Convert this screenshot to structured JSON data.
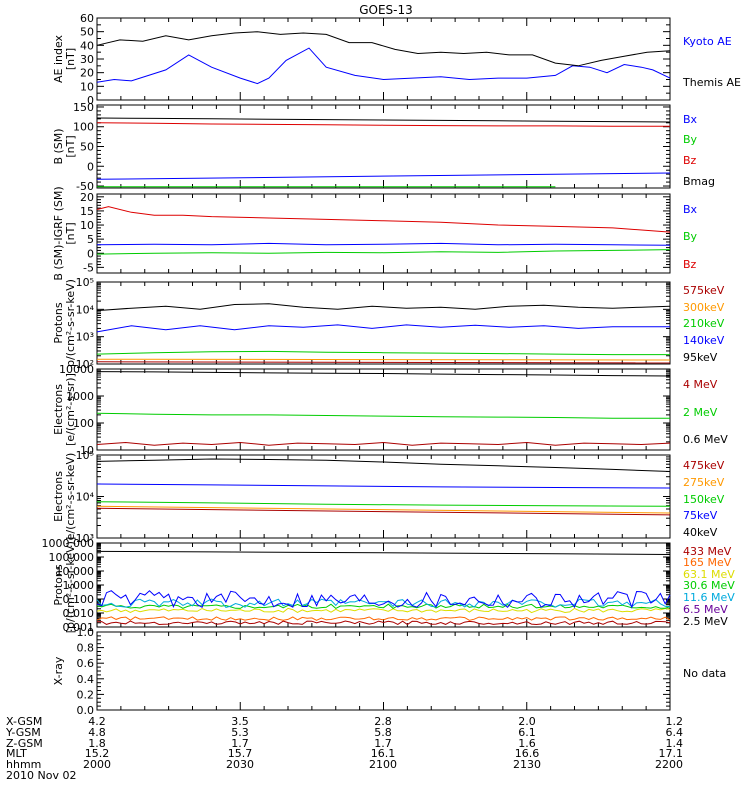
{
  "title": "GOES-13",
  "footer": {
    "rows": [
      {
        "label": "X-GSM",
        "values": [
          "4.2",
          "3.5",
          "2.8",
          "2.0",
          "1.2"
        ]
      },
      {
        "label": "Y-GSM",
        "values": [
          "4.8",
          "5.3",
          "5.8",
          "6.1",
          "6.4"
        ]
      },
      {
        "label": "Z-GSM",
        "values": [
          "1.8",
          "1.7",
          "1.7",
          "1.6",
          "1.4"
        ]
      },
      {
        "label": "MLT",
        "values": [
          "15.2",
          "15.7",
          "16.1",
          "16.6",
          "17.1"
        ]
      },
      {
        "label": "hhmm",
        "values": [
          "2000",
          "2030",
          "2100",
          "2130",
          "2200"
        ]
      }
    ],
    "date": "2010 Nov 02"
  },
  "chart_data": [
    {
      "type": "line",
      "ylabel": [
        "AE index",
        "[nT]"
      ],
      "yscale": "linear",
      "ylim": [
        0,
        60
      ],
      "minor": 2,
      "ticks": [
        0,
        10,
        20,
        30,
        40,
        50,
        60
      ],
      "tick_labels": [
        "0",
        "10",
        "20",
        "30",
        "40",
        "50",
        "60"
      ],
      "series": [
        {
          "name": "Kyoto AE",
          "color": "#0000ff",
          "label_color": "#0000ff",
          "x": [
            0,
            0.03,
            0.06,
            0.09,
            0.12,
            0.16,
            0.2,
            0.25,
            0.28,
            0.3,
            0.33,
            0.37,
            0.4,
            0.45,
            0.5,
            0.55,
            0.6,
            0.65,
            0.7,
            0.75,
            0.8,
            0.83,
            0.86,
            0.89,
            0.92,
            0.95,
            0.97,
            1
          ],
          "y": [
            13,
            15,
            14,
            18,
            22,
            33,
            24,
            16,
            12,
            16,
            29,
            38,
            24,
            18,
            15,
            16,
            17,
            15,
            16,
            16,
            18,
            25,
            24,
            20,
            26,
            24,
            22,
            16
          ]
        },
        {
          "name": "Themis AE",
          "color": "#000000",
          "label_color": "#000000",
          "x": [
            0,
            0.04,
            0.08,
            0.12,
            0.16,
            0.2,
            0.24,
            0.28,
            0.32,
            0.36,
            0.4,
            0.44,
            0.48,
            0.52,
            0.56,
            0.6,
            0.64,
            0.68,
            0.72,
            0.76,
            0.8,
            0.84,
            0.88,
            0.92,
            0.96,
            1
          ],
          "y": [
            40,
            44,
            43,
            47,
            44,
            47,
            49,
            50,
            48,
            49,
            48,
            42,
            42,
            37,
            34,
            35,
            34,
            35,
            33,
            33,
            27,
            25,
            29,
            32,
            35,
            36
          ]
        }
      ]
    },
    {
      "type": "line",
      "ylabel": [
        "B (SM)",
        "[nT]"
      ],
      "yscale": "linear",
      "ylim": [
        -55,
        155
      ],
      "minor": 5,
      "ticks": [
        -50,
        0,
        50,
        100,
        150
      ],
      "tick_labels": [
        "-50",
        "0",
        "50",
        "100",
        "150"
      ],
      "series": [
        {
          "name": "Bx",
          "color": "#0000ff",
          "label_color": "#0000ff",
          "x": [
            0,
            1
          ],
          "y": [
            -33,
            -17
          ]
        },
        {
          "name": "By",
          "color": "#00cc00",
          "label_color": "#00cc00",
          "x": [
            0,
            0.8
          ],
          "y": [
            -52,
            -52
          ]
        },
        {
          "name": "Bz",
          "color": "#dd0000",
          "label_color": "#dd0000",
          "x": [
            0,
            0.1,
            0.2,
            0.3,
            0.4,
            0.5,
            0.6,
            0.7,
            0.8,
            0.9,
            1
          ],
          "y": [
            110,
            109,
            107,
            106,
            105,
            104,
            103,
            102,
            102,
            101,
            101
          ]
        },
        {
          "name": "Bmag",
          "color": "#000000",
          "label_color": "#000000",
          "x": [
            0,
            0.1,
            0.2,
            0.3,
            0.4,
            0.5,
            0.6,
            0.7,
            0.8,
            0.9,
            1
          ],
          "y": [
            122,
            121,
            120,
            119,
            118,
            117,
            116,
            115,
            114,
            113,
            112
          ]
        }
      ]
    },
    {
      "type": "line",
      "ylabel": [
        "B (SM)-IGRF (SM)",
        "[nT]"
      ],
      "yscale": "linear",
      "ylim": [
        -7,
        21
      ],
      "minor": 5,
      "ticks": [
        -5,
        0,
        5,
        10,
        15,
        20
      ],
      "tick_labels": [
        "-5",
        "0",
        "5",
        "10",
        "15",
        "20"
      ],
      "series": [
        {
          "name": "Bx",
          "color": "#0000ff",
          "label_color": "#0000ff",
          "x": [
            0,
            0.1,
            0.2,
            0.3,
            0.4,
            0.5,
            0.6,
            0.7,
            0.8,
            0.9,
            1
          ],
          "y": [
            3.0,
            3.2,
            3.0,
            3.5,
            3.0,
            3.2,
            3.5,
            3.0,
            3.2,
            3.0,
            2.8
          ]
        },
        {
          "name": "By",
          "color": "#00cc00",
          "label_color": "#00cc00",
          "x": [
            0,
            0.1,
            0.2,
            0.3,
            0.4,
            0.5,
            0.6,
            0.7,
            0.8,
            0.9,
            1
          ],
          "y": [
            -0.3,
            0,
            0.2,
            0,
            0.3,
            0.2,
            0.5,
            0.3,
            0.8,
            1.0,
            1.3
          ]
        },
        {
          "name": "Bz",
          "color": "#dd0000",
          "label_color": "#dd0000",
          "x": [
            0,
            0.02,
            0.06,
            0.1,
            0.15,
            0.2,
            0.3,
            0.4,
            0.5,
            0.6,
            0.7,
            0.8,
            0.9,
            1
          ],
          "y": [
            15.5,
            16.5,
            14.5,
            13.5,
            13.5,
            13,
            12.5,
            12,
            11.5,
            11,
            10,
            9.5,
            9,
            7.5
          ]
        }
      ]
    },
    {
      "type": "line",
      "ylabel": [
        "Protons",
        "p/(cm²-s-sr-keV)"
      ],
      "yscale": "log",
      "ylim": [
        100,
        100000
      ],
      "ticks": [
        100,
        1000,
        10000,
        100000
      ],
      "tick_labels": [
        "10²",
        "10³",
        "10⁴",
        "10⁵"
      ],
      "series": [
        {
          "name": "575keV",
          "color": "#aa0000",
          "label_color": "#aa0000",
          "x": [
            0,
            1
          ],
          "y": [
            120,
            110
          ]
        },
        {
          "name": "300keV",
          "color": "#ff9900",
          "label_color": "#ff9900",
          "x": [
            0,
            1
          ],
          "y": [
            150,
            140
          ]
        },
        {
          "name": "210keV",
          "color": "#00cc00",
          "label_color": "#00cc00",
          "x": [
            0,
            0.1,
            0.2,
            0.3,
            0.4,
            0.5,
            0.6,
            0.7,
            0.8,
            0.9,
            1
          ],
          "y": [
            230,
            260,
            280,
            290,
            270,
            260,
            250,
            240,
            230,
            220,
            220
          ]
        },
        {
          "name": "140keV",
          "color": "#0000ff",
          "label_color": "#0000ff",
          "x": [
            0,
            0.06,
            0.12,
            0.18,
            0.24,
            0.3,
            0.36,
            0.42,
            0.48,
            0.54,
            0.6,
            0.66,
            0.72,
            0.78,
            0.84,
            0.9,
            0.95,
            1
          ],
          "y": [
            1500,
            2500,
            1800,
            2500,
            1800,
            2500,
            2200,
            2700,
            2000,
            2700,
            2200,
            2600,
            2200,
            2500,
            2000,
            2300,
            2300,
            2300
          ]
        },
        {
          "name": "95keV",
          "color": "#000000",
          "label_color": "#000000",
          "x": [
            0,
            0.06,
            0.12,
            0.18,
            0.24,
            0.3,
            0.36,
            0.42,
            0.48,
            0.54,
            0.6,
            0.66,
            0.72,
            0.78,
            0.84,
            0.9,
            0.95,
            1
          ],
          "y": [
            9000,
            11000,
            13000,
            10000,
            15000,
            16000,
            12000,
            10000,
            13000,
            11000,
            12000,
            10000,
            13000,
            14000,
            12000,
            11000,
            12000,
            13000
          ]
        }
      ]
    },
    {
      "type": "line",
      "ylabel": [
        "Electrons",
        "[e/(cm²-s-sr)]"
      ],
      "yscale": "log",
      "ylim": [
        10,
        10000
      ],
      "ticks": [
        10,
        100,
        1000,
        10000
      ],
      "tick_labels": [
        "10",
        "100",
        "1000",
        "10000"
      ],
      "series": [
        {
          "name": "4 MeV",
          "color": "#aa0000",
          "label_color": "#aa0000",
          "x": [
            0,
            0.05,
            0.1,
            0.15,
            0.2,
            0.25,
            0.3,
            0.35,
            0.4,
            0.45,
            0.5,
            0.55,
            0.6,
            0.65,
            0.7,
            0.75,
            0.8,
            0.85,
            0.9,
            0.95,
            1
          ],
          "y": [
            16,
            19,
            15,
            18,
            16,
            19,
            15,
            18,
            17,
            16,
            19,
            15,
            18,
            17,
            16,
            19,
            15,
            18,
            17,
            16,
            18
          ]
        },
        {
          "name": "2 MeV",
          "color": "#00cc00",
          "label_color": "#00cc00",
          "x": [
            0,
            0.1,
            0.2,
            0.3,
            0.4,
            0.5,
            0.6,
            0.7,
            0.8,
            0.9,
            1
          ],
          "y": [
            230,
            210,
            200,
            200,
            190,
            180,
            170,
            165,
            160,
            150,
            150
          ]
        },
        {
          "name": "0.6 MeV",
          "color": "#000000",
          "label_color": "#000000",
          "x": [
            0,
            0.1,
            0.2,
            0.3,
            0.4,
            0.5,
            0.6,
            0.7,
            0.8,
            0.9,
            1
          ],
          "y": [
            8000,
            7800,
            7500,
            7200,
            7000,
            6800,
            6500,
            6200,
            6000,
            5700,
            5500
          ]
        }
      ]
    },
    {
      "type": "line",
      "ylabel": [
        "Electrons",
        "e/(cm²-s-sr-keV)"
      ],
      "yscale": "log",
      "ylim": [
        1000,
        100000
      ],
      "ticks": [
        1000,
        10000,
        100000
      ],
      "tick_labels": [
        "10³",
        "10⁴",
        "10⁵"
      ],
      "series": [
        {
          "name": "475keV",
          "color": "#aa0000",
          "label_color": "#aa0000",
          "x": [
            0,
            1
          ],
          "y": [
            5200,
            3600
          ]
        },
        {
          "name": "275keV",
          "color": "#ff9900",
          "label_color": "#ff9900",
          "x": [
            0,
            1
          ],
          "y": [
            5800,
            4000
          ]
        },
        {
          "name": "150keV",
          "color": "#00cc00",
          "label_color": "#00cc00",
          "x": [
            0,
            0.2,
            0.4,
            0.6,
            0.8,
            1
          ],
          "y": [
            7500,
            7000,
            6500,
            6200,
            6000,
            5800
          ]
        },
        {
          "name": "75keV",
          "color": "#0000ff",
          "label_color": "#0000ff",
          "x": [
            0,
            0.2,
            0.4,
            0.6,
            0.8,
            1
          ],
          "y": [
            20000,
            19000,
            18000,
            17000,
            16500,
            16000
          ]
        },
        {
          "name": "40keV",
          "color": "#000000",
          "label_color": "#000000",
          "x": [
            0,
            0.1,
            0.2,
            0.3,
            0.4,
            0.5,
            0.6,
            0.7,
            0.8,
            0.9,
            1
          ],
          "y": [
            70000,
            75000,
            80000,
            78000,
            75000,
            68000,
            60000,
            55000,
            50000,
            45000,
            40000
          ]
        }
      ]
    },
    {
      "type": "line",
      "ylabel": [
        "Protons",
        "[p/(cm²-s-sr-keV)]"
      ],
      "yscale": "log",
      "ylim": [
        0.001,
        1000
      ],
      "ticks": [
        0.001,
        0.01,
        0.1,
        1,
        10,
        100,
        1000
      ],
      "tick_labels": [
        "0.001",
        "0.010",
        "0.100",
        "1.000",
        "10.000",
        "100.000",
        "1000.000"
      ],
      "series": [
        {
          "name": "433 MeV",
          "color": "#aa0000",
          "label_color": "#aa0000",
          "x": [
            0,
            1
          ],
          "y": [
            0.002,
            0.002
          ],
          "noise": 0.25
        },
        {
          "name": "165 MeV",
          "color": "#ff6600",
          "label_color": "#ff6600",
          "x": [
            0,
            1
          ],
          "y": [
            0.004,
            0.004
          ],
          "noise": 0.25
        },
        {
          "name": "63.1 MeV",
          "color": "#dddd00",
          "label_color": "#dddd00",
          "x": [
            0,
            1
          ],
          "y": [
            0.015,
            0.015
          ],
          "noise": 0.3
        },
        {
          "name": "30.6 MeV",
          "color": "#00cc00",
          "label_color": "#00cc00",
          "x": [
            0,
            1
          ],
          "y": [
            0.03,
            0.03
          ],
          "noise": 0.3
        },
        {
          "name": "11.6 MeV",
          "color": "#00aadd",
          "label_color": "#00aadd",
          "x": [
            0,
            1
          ],
          "y": [
            0.05,
            0.05
          ],
          "noise": 0.6
        },
        {
          "name": "6.5 MeV",
          "color": "#0000ff",
          "label_color": "#660099",
          "x": [
            0,
            1
          ],
          "y": [
            0.1,
            0.1
          ],
          "noise": 1.2
        },
        {
          "name": "2.5 MeV",
          "color": "#000000",
          "label_color": "#000000",
          "x": [
            0,
            0.2,
            0.4,
            0.6,
            0.8,
            1
          ],
          "y": [
            250,
            230,
            210,
            190,
            170,
            150
          ]
        }
      ]
    },
    {
      "type": "line",
      "ylabel": [
        "X-ray",
        ""
      ],
      "yscale": "linear",
      "ylim": [
        0,
        1
      ],
      "minor": 4,
      "ticks": [
        0,
        0.2,
        0.4,
        0.6,
        0.8,
        1
      ],
      "tick_labels": [
        "0.0",
        "0.2",
        "0.4",
        "0.6",
        "0.8",
        "1.0"
      ],
      "series": [],
      "note": "No data"
    }
  ]
}
